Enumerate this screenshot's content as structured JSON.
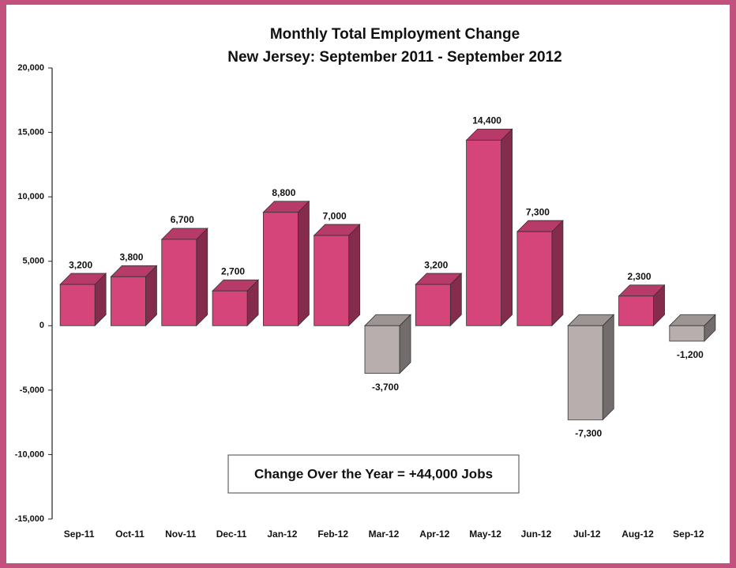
{
  "chart_data": {
    "type": "bar3d",
    "title": "Monthly Total Employment Change",
    "subtitle": "New Jersey: September 2011 - September 2012",
    "annotation": "Change Over the Year = +44,000 Jobs",
    "categories": [
      "Sep-11",
      "Oct-11",
      "Nov-11",
      "Dec-11",
      "Jan-12",
      "Feb-12",
      "Mar-12",
      "Apr-12",
      "May-12",
      "Jun-12",
      "Jul-12",
      "Aug-12",
      "Sep-12"
    ],
    "values": [
      3200,
      3800,
      6700,
      2700,
      8800,
      7000,
      -3700,
      3200,
      14400,
      7300,
      -7300,
      2300,
      -1200
    ],
    "value_labels": [
      "3,200",
      "3,800",
      "6,700",
      "2,700",
      "8,800",
      "7,000",
      "-3,700",
      "3,200",
      "14,400",
      "7,300",
      "-7,300",
      "2,300",
      "-1,200"
    ],
    "color": "#d6457a",
    "negative_color": "#b9aeae",
    "ylim": [
      -15000,
      20000
    ],
    "yticks": [
      {
        "value": -15000,
        "label": "-15,000"
      },
      {
        "value": -10000,
        "label": "-10,000"
      },
      {
        "value": -5000,
        "label": "-5,000"
      },
      0,
      {
        "value": 5000,
        "label": "5,000"
      },
      {
        "value": 10000,
        "label": "10,000"
      },
      {
        "value": 15000,
        "label": "15,000"
      },
      {
        "value": 20000,
        "label": "20,000"
      }
    ],
    "grid": false
  }
}
